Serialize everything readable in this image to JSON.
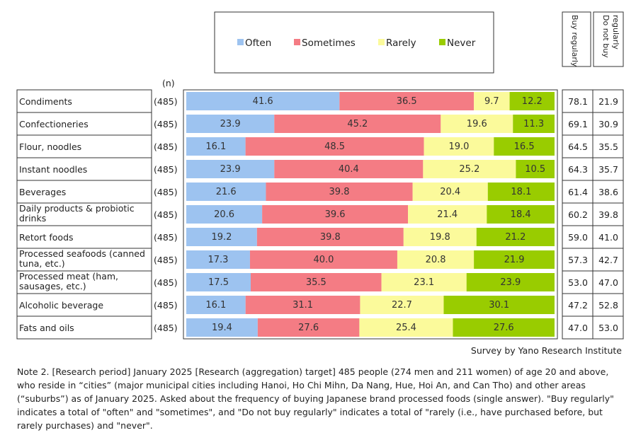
{
  "chart_data": {
    "type": "bar",
    "orientation": "horizontal",
    "stacked": true,
    "n_label": "(n)",
    "categories": [
      "Condiments",
      "Confectioneries",
      "Flour, noodles",
      "Instant noodles",
      "Beverages",
      "Daily products & probiotic drinks",
      "Retort foods",
      "Processed seafoods  (canned tuna, etc.)",
      "Processed meat (ham, sausages, etc.)",
      "Alcoholic beverage",
      "Fats and oils"
    ],
    "n": [
      "(485)",
      "(485)",
      "(485)",
      "(485)",
      "(485)",
      "(485)",
      "(485)",
      "(485)",
      "(485)",
      "(485)",
      "(485)"
    ],
    "series": [
      {
        "name": "Often",
        "color": "#9dc3f0",
        "values": [
          41.6,
          23.9,
          16.1,
          23.9,
          21.6,
          20.6,
          19.2,
          17.3,
          17.5,
          16.1,
          19.4
        ]
      },
      {
        "name": "Sometimes",
        "color": "#f47c84",
        "values": [
          36.5,
          45.2,
          48.5,
          40.4,
          39.8,
          39.6,
          39.8,
          40.0,
          35.5,
          31.1,
          27.6
        ]
      },
      {
        "name": "Rarely",
        "color": "#fbfa9b",
        "values": [
          9.7,
          19.6,
          19.0,
          25.2,
          20.4,
          21.4,
          19.8,
          20.8,
          23.1,
          22.7,
          25.4
        ]
      },
      {
        "name": "Never",
        "color": "#99cc00",
        "values": [
          12.2,
          11.3,
          16.5,
          10.5,
          18.1,
          18.4,
          21.2,
          21.9,
          23.9,
          30.1,
          27.6
        ]
      }
    ],
    "summary_headers": [
      "Buy regularly",
      "Do not buy regularly"
    ],
    "buy_regularly": [
      "78.1",
      "69.1",
      "64.5",
      "64.3",
      "61.4",
      "60.2",
      "59.0",
      "57.3",
      "53.0",
      "47.2",
      "47.0"
    ],
    "do_not_buy_regularly": [
      "21.9",
      "30.9",
      "35.5",
      "35.7",
      "38.6",
      "39.8",
      "41.0",
      "42.7",
      "47.0",
      "52.8",
      "53.0"
    ],
    "xlim": [
      0,
      100
    ]
  },
  "source": "Survey by Yano Research Institute",
  "note": "Note 2. [Research period] January 2025 [Research (aggregation) target] 485 people (274 men and 211 women) of age 20 and above, who reside in “cities” (major municipal cities including Hanoi, Ho Chi Mihn, Da Nang, Hue, Hoi An, and Can Tho) and other areas (“suburbs”) as of January 2025. Asked about the frequency of buying Japanese brand processed foods (single answer). \"Buy regularly\" indicates a total of \"often\" and \"sometimes\", and \"Do not buy regularly\" indicates a total of \"rarely (i.e., have purchased before, but rarely purchases) and \"never\"."
}
